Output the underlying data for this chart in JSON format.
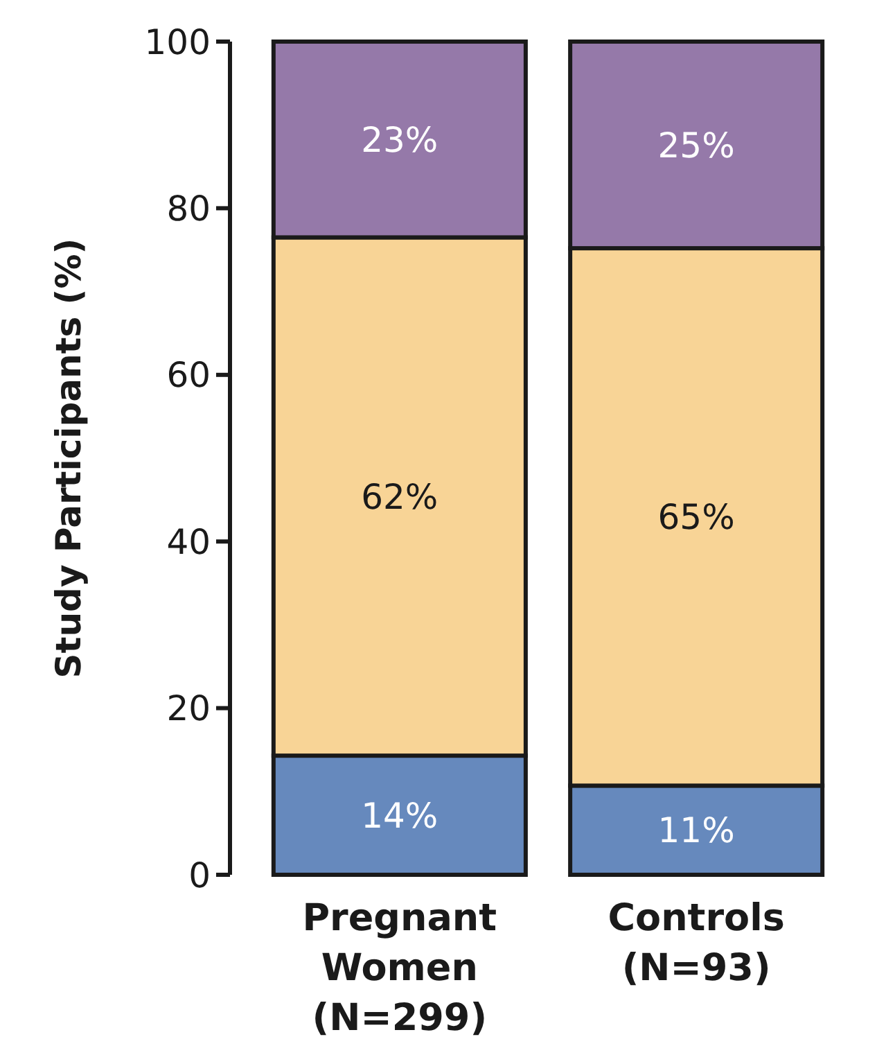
{
  "chart_data": {
    "type": "bar",
    "stacked": true,
    "ylabel": "Study Participants (%)",
    "categories": [
      "Pregnant Women (N=299)",
      "Controls (N=93)"
    ],
    "series": [
      {
        "color": "#6689bd",
        "values": [
          14.3,
          10.7
        ],
        "value_labels": [
          "14%",
          "11%"
        ]
      },
      {
        "color": "#f8d496",
        "values": [
          62.2,
          64.5
        ],
        "value_labels": [
          "62%",
          "65%"
        ]
      },
      {
        "color": "#9579a9",
        "values": [
          23.5,
          24.8
        ],
        "value_labels": [
          "23%",
          "25%"
        ]
      }
    ],
    "ylim": [
      0,
      100
    ],
    "yticks": [
      0,
      20,
      40,
      60,
      80,
      100
    ],
    "grid": false
  }
}
